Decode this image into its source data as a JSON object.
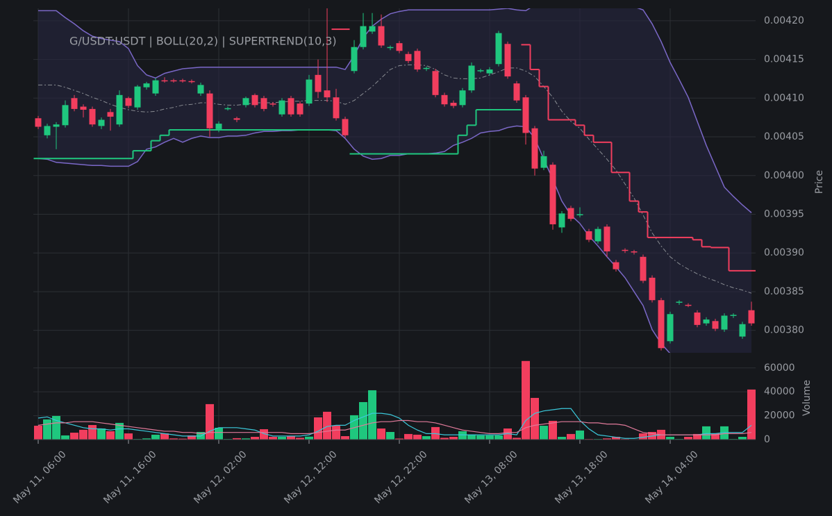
{
  "chart_data": {
    "type": "candlestick",
    "title": "G/USDT:USDT | BOLL(20,2) | SUPERTREND(10,3)",
    "categories": [
      "May 11, 06:00",
      null,
      null,
      null,
      null,
      null,
      null,
      null,
      null,
      null,
      "May 11, 16:00",
      null,
      null,
      null,
      null,
      null,
      null,
      null,
      null,
      null,
      "May 12, 02:00",
      null,
      null,
      null,
      null,
      null,
      null,
      null,
      null,
      null,
      "May 12, 12:00",
      null,
      null,
      null,
      null,
      null,
      null,
      null,
      null,
      null,
      "May 12, 22:00",
      null,
      null,
      null,
      null,
      null,
      null,
      null,
      null,
      null,
      "May 13, 08:00",
      null,
      null,
      null,
      null,
      null,
      null,
      null,
      null,
      null,
      "May 13, 18:00",
      null,
      null,
      null,
      null,
      null,
      null,
      null,
      null,
      null,
      "May 14, 04:00",
      null,
      null,
      null,
      null,
      null,
      null,
      null,
      null,
      null
    ],
    "open": [
      0.004074,
      0.004052,
      0.004063,
      0.004065,
      0.0041,
      0.004089,
      0.004086,
      0.004064,
      0.004082,
      0.004066,
      0.0041,
      0.004088,
      0.004114,
      0.004106,
      0.004123,
      0.004123,
      0.004123,
      0.004122,
      0.004106,
      0.004106,
      0.00406,
      0.004086,
      0.004074,
      0.004091,
      0.004104,
      0.0041,
      0.004093,
      0.004079,
      0.0041,
      0.004093,
      0.004093,
      0.00413,
      0.00411,
      0.004101,
      0.004073,
      0.004135,
      0.004166,
      0.004186,
      0.004193,
      0.004165,
      0.004171,
      0.004157,
      0.004161,
      0.004138,
      0.004135,
      0.004104,
      0.004094,
      0.004091,
      0.00411,
      0.004135,
      0.004132,
      0.004144,
      0.00417,
      0.004119,
      0.004101,
      0.004061,
      0.00401,
      0.004014,
      0.003933,
      0.003958,
      0.003949,
      0.003928,
      0.003915,
      0.003934,
      0.003888,
      0.003904,
      0.003902,
      0.003895,
      0.003868,
      0.003839,
      0.003786,
      0.003836,
      0.003833,
      0.003823,
      0.003809,
      0.003812,
      0.003801,
      0.003819,
      0.003792,
      0.003826
    ],
    "high": [
      0.004077,
      0.004067,
      0.004069,
      0.004097,
      0.004104,
      0.004092,
      0.004089,
      0.004075,
      0.004086,
      0.00411,
      0.004102,
      0.004117,
      0.004121,
      0.004126,
      0.004127,
      0.004125,
      0.004125,
      0.004124,
      0.00412,
      0.00411,
      0.00407,
      0.004089,
      0.004076,
      0.004102,
      0.004106,
      0.004103,
      0.004095,
      0.0041,
      0.004103,
      0.004096,
      0.00413,
      0.00415,
      0.00422,
      0.004112,
      0.004076,
      0.004175,
      0.00421,
      0.00421,
      0.004208,
      0.004168,
      0.004174,
      0.00416,
      0.004164,
      0.004141,
      0.004138,
      0.004107,
      0.004097,
      0.004113,
      0.004146,
      0.004138,
      0.00414,
      0.004187,
      0.004173,
      0.004122,
      0.004104,
      0.004064,
      0.004032,
      0.004017,
      0.003954,
      0.003961,
      0.003959,
      0.003931,
      0.003934,
      0.003937,
      0.003891,
      0.003906,
      0.003904,
      0.003898,
      0.003871,
      0.003842,
      0.003824,
      0.003839,
      0.003835,
      0.003826,
      0.003817,
      0.003815,
      0.003822,
      0.003822,
      0.003811,
      0.003837
    ],
    "low": [
      0.00406,
      0.004048,
      0.004034,
      0.004062,
      0.004083,
      0.004075,
      0.004063,
      0.00406,
      0.004058,
      0.004063,
      0.004087,
      0.004085,
      0.004111,
      0.004103,
      0.00412,
      0.00412,
      0.00412,
      0.004119,
      0.004103,
      0.00405,
      0.004056,
      0.004084,
      0.004069,
      0.004088,
      0.004088,
      0.004083,
      0.004089,
      0.004076,
      0.004076,
      0.004076,
      0.00409,
      0.0041,
      0.004095,
      0.004071,
      0.004049,
      0.004132,
      0.004163,
      0.004183,
      0.004165,
      0.004162,
      0.004158,
      0.004145,
      0.004134,
      0.004135,
      0.004101,
      0.004089,
      0.004087,
      0.004088,
      0.004107,
      0.004133,
      0.004129,
      0.004141,
      0.004125,
      0.004094,
      0.00404,
      0.004,
      0.004007,
      0.00393,
      0.003926,
      0.003941,
      0.003946,
      0.003914,
      0.003912,
      0.003895,
      0.003876,
      0.0039,
      0.003898,
      0.003861,
      0.003836,
      0.003774,
      0.003783,
      0.003833,
      0.00383,
      0.003804,
      0.003806,
      0.003799,
      0.003798,
      0.003816,
      0.003789,
      0.003806
    ],
    "close": [
      0.004063,
      0.004064,
      0.004066,
      0.004091,
      0.004086,
      0.004085,
      0.004066,
      0.004072,
      0.004076,
      0.004104,
      0.00409,
      0.004115,
      0.004119,
      0.004123,
      0.004122,
      0.004122,
      0.004122,
      0.004121,
      0.004117,
      0.004061,
      0.004067,
      0.004087,
      0.004072,
      0.0041,
      0.004091,
      0.004086,
      0.004092,
      0.004097,
      0.004079,
      0.004079,
      0.004124,
      0.004108,
      0.004101,
      0.004074,
      0.004052,
      0.004166,
      0.004193,
      0.004193,
      0.004168,
      0.004166,
      0.004161,
      0.004148,
      0.004137,
      0.004139,
      0.004104,
      0.004092,
      0.00409,
      0.00411,
      0.004142,
      0.004136,
      0.004137,
      0.004184,
      0.004128,
      0.004097,
      0.004055,
      0.004009,
      0.004025,
      0.003937,
      0.003951,
      0.003944,
      0.00395,
      0.003917,
      0.003931,
      0.003902,
      0.003879,
      0.003903,
      0.003901,
      0.003864,
      0.003839,
      0.003777,
      0.003821,
      0.003837,
      0.003832,
      0.003807,
      0.003814,
      0.003802,
      0.003819,
      0.00382,
      0.003808,
      0.003809
    ],
    "up_color": "#1fc77e",
    "down_color": "#f23e5e",
    "ylim": [
      0.003771,
      0.004216
    ],
    "yticks": [
      {
        "value": 0.0038,
        "label": "0.00380"
      },
      0.00385,
      {
        "value": 0.0039,
        "label": "0.00390"
      },
      0.00395,
      {
        "value": 0.004,
        "label": "0.00400"
      },
      0.00405,
      {
        "value": 0.0041,
        "label": "0.00410"
      },
      0.00415,
      {
        "value": 0.0042,
        "label": "0.00420"
      }
    ],
    "ylabel": "Price",
    "grid": true,
    "bollinger": {
      "color": "#7b68c8",
      "middle_color": "#8a8d93",
      "fill": "#262640",
      "upper": [
        0.004213,
        0.004213,
        0.004213,
        0.004204,
        0.004196,
        0.004187,
        0.00418,
        0.004177,
        0.004175,
        0.004173,
        0.004164,
        0.004142,
        0.00413,
        0.004126,
        0.004132,
        0.004135,
        0.004138,
        0.004139,
        0.00414,
        0.00414,
        0.00414,
        0.00414,
        0.00414,
        0.00414,
        0.00414,
        0.00414,
        0.00414,
        0.00414,
        0.00414,
        0.00414,
        0.00414,
        0.00414,
        0.00414,
        0.00414,
        0.004137,
        0.004155,
        0.004178,
        0.004193,
        0.004202,
        0.004209,
        0.004212,
        0.004214,
        0.004214,
        0.004214,
        0.004214,
        0.004214,
        0.004214,
        0.004214,
        0.004214,
        0.004214,
        0.004214,
        0.004215,
        0.004216,
        0.004214,
        0.004213,
        0.00422,
        0.004225,
        0.004231,
        0.004231,
        0.004231,
        0.004231,
        0.004231,
        0.004231,
        0.004231,
        0.004231,
        0.004231,
        0.004218,
        0.004214,
        0.004196,
        0.004173,
        0.004146,
        0.004124,
        0.004101,
        0.00407,
        0.004039,
        0.004012,
        0.003985,
        0.003973,
        0.003962,
        0.003952
      ],
      "middle": [
        0.004117,
        0.004117,
        0.004117,
        0.004114,
        0.00411,
        0.004106,
        0.004101,
        0.004097,
        0.004092,
        0.004088,
        0.004085,
        0.004083,
        0.004082,
        0.004083,
        0.004086,
        0.004088,
        0.004091,
        0.004092,
        0.004094,
        0.004094,
        0.004092,
        0.004091,
        0.004091,
        0.004092,
        0.004094,
        0.004094,
        0.004094,
        0.004095,
        0.004096,
        0.004096,
        0.004097,
        0.004097,
        0.004097,
        0.004096,
        0.004092,
        0.004097,
        0.004106,
        0.004115,
        0.004126,
        0.004137,
        0.004142,
        0.004143,
        0.004143,
        0.004142,
        0.004137,
        0.00413,
        0.004126,
        0.004125,
        0.004125,
        0.004126,
        0.00413,
        0.004134,
        0.004139,
        0.004139,
        0.004135,
        0.004128,
        0.004115,
        0.004101,
        0.004083,
        0.00407,
        0.004061,
        0.004047,
        0.004034,
        0.004021,
        0.004007,
        0.003989,
        0.003971,
        0.003949,
        0.003926,
        0.003909,
        0.003895,
        0.003886,
        0.003879,
        0.003873,
        0.003868,
        0.003864,
        0.003859,
        0.003855,
        0.003852,
        0.003848
      ],
      "lower": [
        0.004022,
        0.004021,
        0.004017,
        0.004016,
        0.004015,
        0.004014,
        0.004013,
        0.004013,
        0.004012,
        0.004012,
        0.004012,
        0.004018,
        0.004034,
        0.004037,
        0.004043,
        0.004048,
        0.004043,
        0.004048,
        0.004051,
        0.004049,
        0.004049,
        0.004051,
        0.004051,
        0.004052,
        0.004055,
        0.004057,
        0.004057,
        0.004058,
        0.004058,
        0.004059,
        0.004059,
        0.004059,
        0.004059,
        0.004058,
        0.004048,
        0.004034,
        0.004025,
        0.004021,
        0.004022,
        0.004026,
        0.004026,
        0.004028,
        0.004028,
        0.004028,
        0.004029,
        0.004031,
        0.004039,
        0.004043,
        0.004048,
        0.004055,
        0.004057,
        0.004058,
        0.004062,
        0.004064,
        0.004063,
        0.004048,
        0.004021,
        0.003995,
        0.003967,
        0.003949,
        0.003938,
        0.003922,
        0.003909,
        0.003895,
        0.003882,
        0.003868,
        0.00385,
        0.003832,
        0.003801,
        0.003783,
        0.00377,
        0.003761,
        0.003756,
        0.003753,
        0.003752,
        0.003752,
        0.003752,
        0.003752,
        0.003753,
        0.003756
      ]
    },
    "supertrend": {
      "up": [
        0.004022,
        0.004022,
        0.004022,
        0.004022,
        0.004022,
        0.004022,
        0.004022,
        0.004022,
        0.004022,
        0.004022,
        0.004022,
        0.004032,
        0.004032,
        0.004045,
        0.004052,
        0.004059,
        0.004059,
        0.004059,
        0.004059,
        0.004059,
        0.004059,
        0.004059,
        0.004059,
        0.004059,
        0.004059,
        0.004059,
        0.004059,
        0.004059,
        0.004059,
        0.004059,
        0.004059,
        0.004059,
        0.004059,
        0.004059,
        null,
        0.004028,
        0.004028,
        0.004028,
        0.004028,
        0.004028,
        0.004028,
        0.004028,
        0.004028,
        0.004028,
        0.004028,
        0.004028,
        0.004028,
        0.004052,
        0.004065,
        0.004085,
        0.004085,
        0.004085,
        0.004085,
        0.004085,
        null,
        null,
        null,
        null,
        null,
        null,
        null,
        null,
        null,
        null,
        null,
        null,
        null,
        null,
        null,
        null,
        null,
        null,
        null,
        null,
        null,
        null,
        null,
        null,
        null,
        null
      ],
      "down": [
        null,
        null,
        null,
        null,
        null,
        null,
        null,
        null,
        null,
        null,
        null,
        null,
        null,
        null,
        null,
        null,
        null,
        null,
        null,
        null,
        null,
        null,
        null,
        null,
        null,
        null,
        null,
        null,
        null,
        null,
        null,
        null,
        null,
        0.004189,
        0.004189,
        null,
        null,
        null,
        null,
        null,
        null,
        null,
        null,
        null,
        null,
        null,
        null,
        null,
        null,
        null,
        null,
        null,
        null,
        null,
        0.004169,
        0.004137,
        0.004115,
        0.004072,
        0.004072,
        0.004072,
        0.004065,
        0.004052,
        0.004043,
        0.004043,
        0.004004,
        0.004004,
        0.003967,
        0.003953,
        0.00392,
        0.00392,
        0.00392,
        0.00392,
        0.00392,
        0.003917,
        0.003908,
        0.003907,
        0.003907,
        0.003877,
        0.003877,
        0.003877
      ]
    },
    "volume": {
      "ylabel": "Volume",
      "ylim": [
        0,
        68000
      ],
      "yticks": [
        0,
        20000,
        40000,
        60000
      ],
      "values": [
        11600,
        16900,
        19800,
        3500,
        5800,
        8200,
        12200,
        9300,
        7000,
        14000,
        5200,
        500,
        1000,
        4100,
        5200,
        1000,
        800,
        3500,
        6400,
        29700,
        9900,
        500,
        1200,
        1000,
        2300,
        8700,
        2300,
        2300,
        2900,
        1500,
        2500,
        18600,
        23300,
        11600,
        2900,
        20400,
        31400,
        41300,
        9300,
        6400,
        900,
        4700,
        4100,
        2900,
        10500,
        1500,
        2300,
        7000,
        4100,
        3500,
        3500,
        3500,
        9300,
        1500,
        65800,
        34900,
        11600,
        15700,
        2300,
        4700,
        7600,
        500,
        500,
        1000,
        2300,
        500,
        300,
        5200,
        6400,
        8200,
        2300,
        500,
        2300,
        4700,
        11100,
        5200,
        11100,
        500,
        2300,
        41900
      ],
      "ma": [
        {
          "color": "#3bc9db",
          "values": [
            18000,
            19000,
            16000,
            14000,
            12000,
            10000,
            9000,
            9000,
            8000,
            9000,
            9000,
            8000,
            7000,
            6000,
            5000,
            4000,
            3000,
            3000,
            3000,
            7000,
            10000,
            10000,
            10000,
            9000,
            8000,
            5000,
            3000,
            3000,
            3000,
            3000,
            4000,
            7000,
            11000,
            12000,
            12000,
            16000,
            19000,
            22000,
            22000,
            21000,
            18000,
            12000,
            8000,
            5000,
            5000,
            4000,
            4000,
            4000,
            4000,
            4000,
            4000,
            4000,
            5000,
            4000,
            16000,
            22000,
            24000,
            25000,
            26000,
            26000,
            16000,
            9000,
            4000,
            3000,
            2000,
            1000,
            1000,
            2000,
            3000,
            4000,
            4000,
            4000,
            4000,
            4000,
            5000,
            5000,
            6000,
            6000,
            6000,
            12000
          ]
        },
        {
          "color": "#e07a9a",
          "values": [
            12000,
            13000,
            14000,
            14000,
            15000,
            15000,
            15000,
            14000,
            13000,
            12000,
            11000,
            10000,
            9000,
            8000,
            7000,
            7000,
            6000,
            6000,
            5000,
            6000,
            6000,
            6000,
            6000,
            6000,
            6000,
            6000,
            6000,
            6000,
            5000,
            5000,
            5000,
            6000,
            7000,
            8000,
            8000,
            10000,
            12000,
            14000,
            15000,
            15000,
            16000,
            16000,
            15000,
            15000,
            14000,
            12000,
            10000,
            8000,
            7000,
            6000,
            5000,
            5000,
            6000,
            6000,
            10000,
            12000,
            13000,
            14000,
            15000,
            15000,
            15000,
            14000,
            14000,
            13000,
            13000,
            12000,
            9000,
            6000,
            5000,
            4000,
            4000,
            4000,
            4000,
            4000,
            4000,
            4000,
            5000,
            5000,
            5000,
            6000
          ]
        }
      ]
    }
  }
}
